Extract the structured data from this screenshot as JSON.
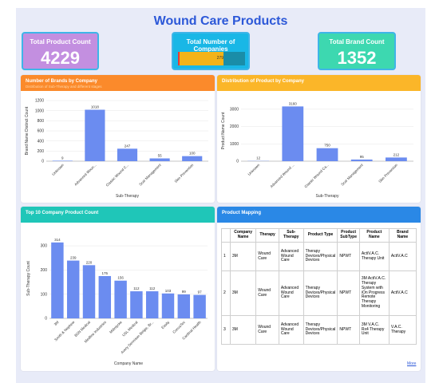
{
  "title": "Wound Care Products",
  "kpis": {
    "products": {
      "label": "Total Product Count",
      "value": "4229"
    },
    "companies": {
      "label": "Total Number of Companies",
      "value": "279",
      "fraction": 0.68
    },
    "brands": {
      "label": "Total Brand Count",
      "value": "1352"
    }
  },
  "colors": {
    "bar": "#6b8cf0",
    "orange": "#fb8a2b",
    "amber": "#fbb629",
    "teal": "#1fc6b8",
    "blue": "#2a88e6"
  },
  "brands_chart": {
    "title": "Number of Brands by Company",
    "subtitle": "Distribution of Sub-Therapy and different stages",
    "chart_data": {
      "type": "bar",
      "categories": [
        "Unknown",
        "Advanced Woun...",
        "Classic Wound C...",
        "Scar Management",
        "Skin Prevention"
      ],
      "values": [
        9,
        1018,
        247,
        55,
        100
      ],
      "ylim": [
        0,
        1200
      ],
      "yticks": [
        "0",
        "200",
        "400",
        "600",
        "800",
        "1000",
        "1200"
      ],
      "ylabel": "Brand Name Distinct Count",
      "xlabel": "Sub-Therapy"
    }
  },
  "products_chart": {
    "title": "Distribution of Product by Company",
    "chart_data": {
      "type": "bar",
      "categories": [
        "Unknown",
        "Advanced Wound ...",
        "Classic Wound Ca...",
        "Scar Management",
        "Skin Prevention"
      ],
      "values": [
        12,
        3160,
        750,
        95,
        212
      ],
      "ylim": [
        0,
        3500
      ],
      "yticks": [
        "0",
        "1000",
        "2000",
        "3000"
      ],
      "ytick_values": [
        0,
        1000,
        2000,
        3000
      ],
      "ylabel": "Product Name Count",
      "xlabel": "Sub-Therapy"
    }
  },
  "top10_chart": {
    "title": "Top 10 Company Product Count",
    "chart_data": {
      "type": "bar",
      "categories": [
        "3M",
        "Smith & Nephew",
        "BSN Medical",
        "Medline Industries",
        "Mölnlycke",
        "USL Medical",
        "Avery Dennison Belgie, Br...",
        "Essity",
        "ConvaTec",
        "Cardinal Health"
      ],
      "values": [
        314,
        239,
        220,
        175,
        156,
        112,
        112,
        103,
        99,
        97
      ],
      "ylim": [
        0,
        330
      ],
      "yticks": [
        "0",
        "100",
        "200",
        "300"
      ],
      "ytick_values": [
        0,
        100,
        200,
        300
      ],
      "ylabel": "Sub-Therapy Count",
      "xlabel": "Company Name"
    }
  },
  "mapping": {
    "title": "Product Mapping",
    "headers": [
      "",
      "Company Name",
      "Therapy",
      "Sub-Therapy",
      "Product Type",
      "Product SubType",
      "Product Name",
      "Brand Name"
    ],
    "rows": [
      [
        "1",
        "3M",
        "Wound Care",
        "Advanced Wound Care",
        "Therapy Devices/Physical Devices",
        "NPWT",
        "ActiV.A.C. Therapy Unit",
        "ActiV.A.C"
      ],
      [
        "2",
        "3M",
        "Wound Care",
        "Advanced Wound Care",
        "Therapy Devices/Physical Devices",
        "NPWT",
        "3M ActiV.A.C. Therapy System with iOn Progress Remote Therapy Monitoring",
        "ActiV.A.C"
      ],
      [
        "3",
        "3M",
        "Wound Care",
        "Advanced Wound Care",
        "Therapy Devices/Physical Devices",
        "NPWT",
        "3M V.A.C. Rx4 Therapy Unit",
        "V.A.C. Therapy"
      ]
    ],
    "more_label": "More"
  }
}
